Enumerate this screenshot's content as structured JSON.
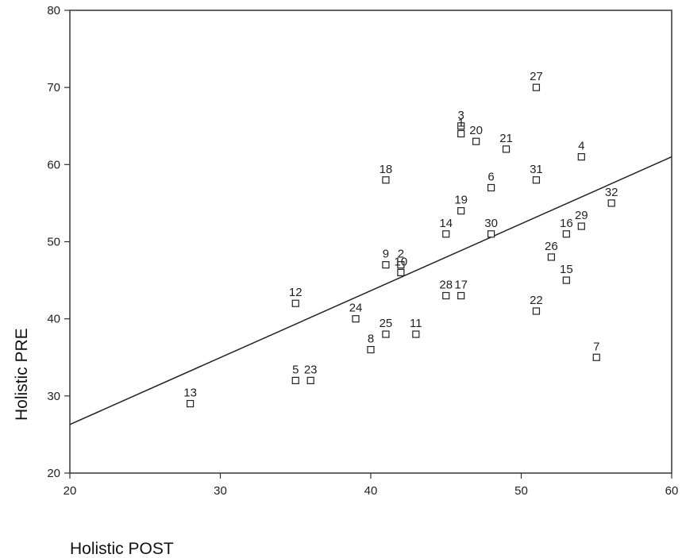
{
  "chart_data": {
    "type": "scatter",
    "title": "",
    "xlabel": "Holistic POST",
    "ylabel": "Holistic PRE",
    "xlim": [
      20,
      60
    ],
    "ylim": [
      20,
      80
    ],
    "xticks": [
      "20",
      "30",
      "40",
      "50",
      "60"
    ],
    "yticks": [
      "20",
      "30",
      "40",
      "50",
      "60",
      "70",
      "80"
    ],
    "grid": false,
    "legend": "none",
    "marker": "open-square",
    "colors": {
      "marker": "#222222",
      "line": "#222222",
      "axis": "#333333"
    },
    "fit_line": {
      "x": [
        20,
        60
      ],
      "y": [
        26.3,
        61
      ]
    },
    "points": [
      {
        "label": "27",
        "x": 51,
        "y": 70
      },
      {
        "label": "3",
        "x": 46,
        "y": 65
      },
      {
        "label": "1",
        "x": 46,
        "y": 64
      },
      {
        "label": "20",
        "x": 47,
        "y": 63
      },
      {
        "label": "21",
        "x": 49,
        "y": 62
      },
      {
        "label": "4",
        "x": 54,
        "y": 61
      },
      {
        "label": "18",
        "x": 41,
        "y": 58
      },
      {
        "label": "31",
        "x": 51,
        "y": 58
      },
      {
        "label": "6",
        "x": 48,
        "y": 57
      },
      {
        "label": "32",
        "x": 56,
        "y": 55
      },
      {
        "label": "19",
        "x": 46,
        "y": 54
      },
      {
        "label": "29",
        "x": 54,
        "y": 52
      },
      {
        "label": "16",
        "x": 53,
        "y": 51
      },
      {
        "label": "14",
        "x": 45,
        "y": 51
      },
      {
        "label": "30",
        "x": 48,
        "y": 51
      },
      {
        "label": "26",
        "x": 52,
        "y": 48
      },
      {
        "label": "9",
        "x": 41,
        "y": 47
      },
      {
        "label": "2",
        "x": 42,
        "y": 47
      },
      {
        "label": "10",
        "x": 42,
        "y": 46
      },
      {
        "label": "15",
        "x": 53,
        "y": 45
      },
      {
        "label": "28",
        "x": 45,
        "y": 43
      },
      {
        "label": "17",
        "x": 46,
        "y": 43
      },
      {
        "label": "12",
        "x": 35,
        "y": 42
      },
      {
        "label": "22",
        "x": 51,
        "y": 41
      },
      {
        "label": "24",
        "x": 39,
        "y": 40
      },
      {
        "label": "25",
        "x": 41,
        "y": 38
      },
      {
        "label": "11",
        "x": 43,
        "y": 38
      },
      {
        "label": "8",
        "x": 40,
        "y": 36
      },
      {
        "label": "7",
        "x": 55,
        "y": 35
      },
      {
        "label": "5",
        "x": 35,
        "y": 32
      },
      {
        "label": "23",
        "x": 36,
        "y": 32
      },
      {
        "label": "13",
        "x": 28,
        "y": 29
      }
    ]
  }
}
